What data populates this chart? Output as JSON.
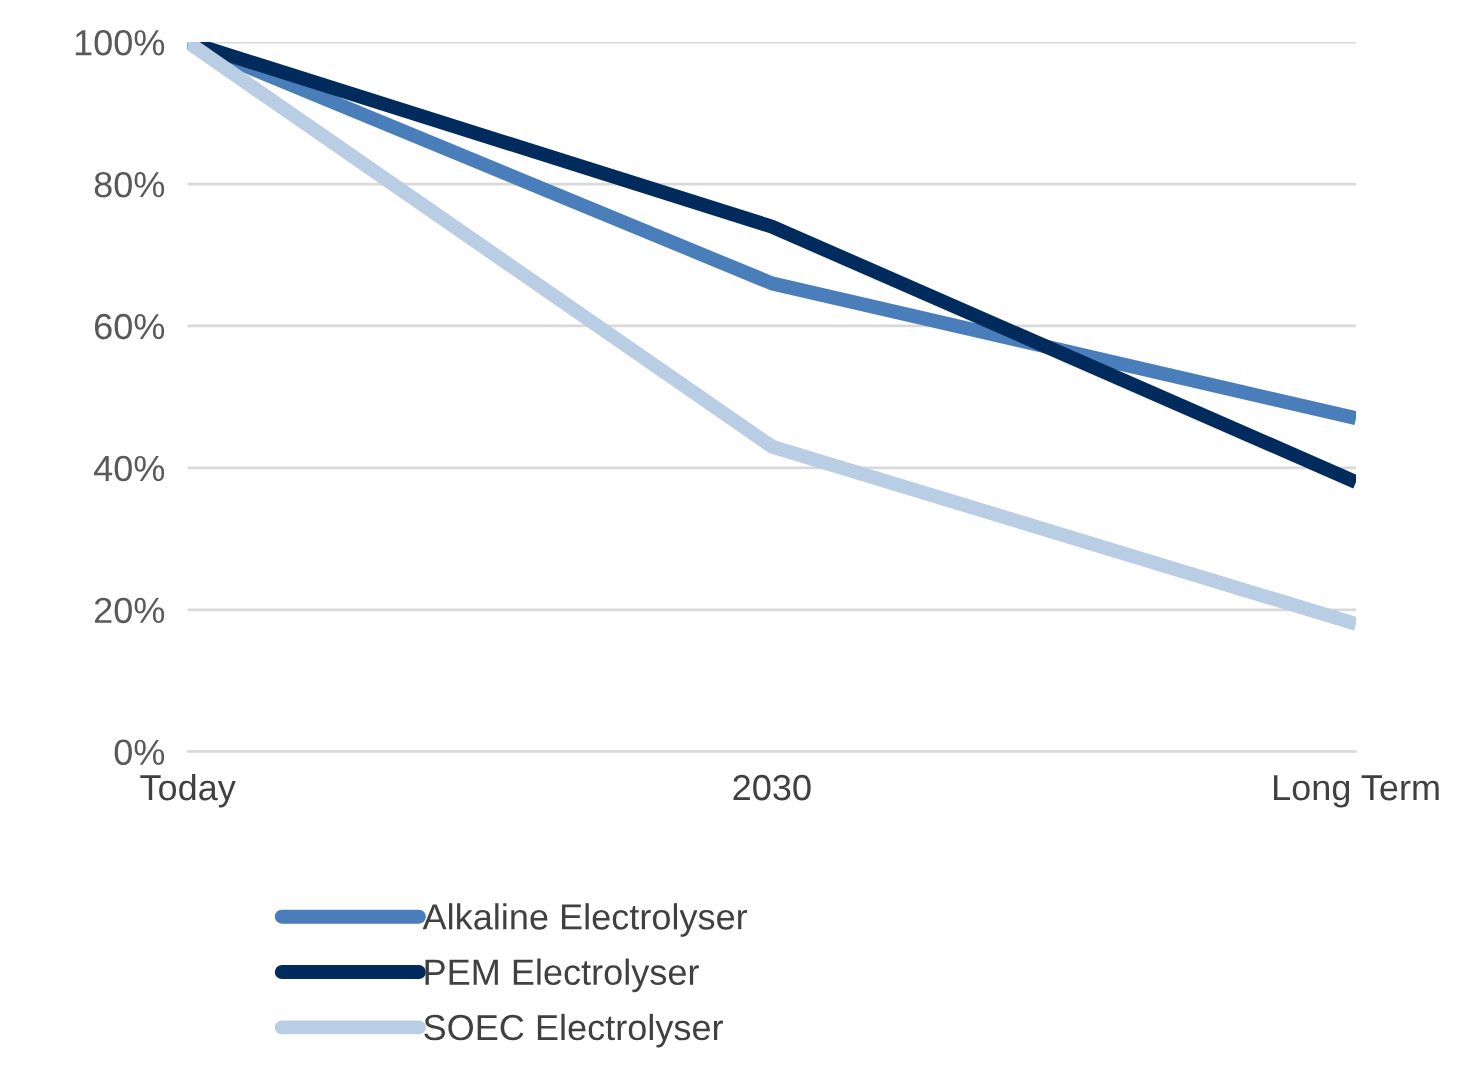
{
  "chart_data": {
    "type": "line",
    "categories": [
      "Today",
      "2030",
      "Long Term"
    ],
    "series": [
      {
        "name": "Alkaline Electrolyser",
        "color": "#4a7ebb",
        "values": [
          100,
          66,
          47
        ]
      },
      {
        "name": "PEM Electrolyser",
        "color": "#002b5c",
        "values": [
          100,
          74,
          38
        ]
      },
      {
        "name": "SOEC Electrolyser",
        "color": "#b9cde5",
        "values": [
          100,
          43,
          18
        ]
      }
    ],
    "ylim": [
      0,
      100
    ],
    "yticks": [
      {
        "value": 0,
        "label": "0%"
      },
      {
        "value": 20,
        "label": "20%"
      },
      {
        "value": 40,
        "label": "40%"
      },
      {
        "value": 60,
        "label": "60%"
      },
      {
        "value": 80,
        "label": "80%"
      },
      {
        "value": 100,
        "label": "100%"
      }
    ],
    "grid": "y",
    "legend": "bottom",
    "marker": "none",
    "line_style": "solid"
  }
}
